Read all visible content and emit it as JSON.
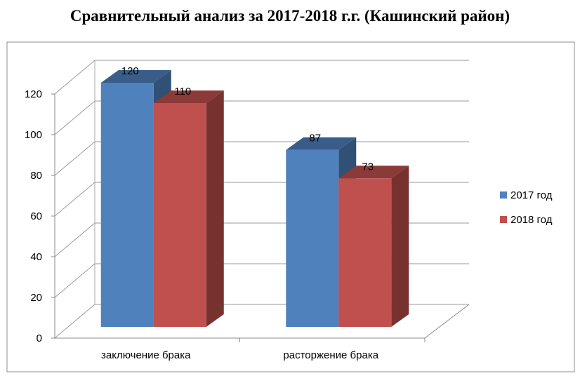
{
  "chart_data": {
    "type": "bar3d",
    "title": "Сравнительный анализ за 2017-2018 г.г. (Кашинский район)",
    "categories": [
      "заключение брака",
      "расторжение брака"
    ],
    "series": [
      {
        "name": "2017 год",
        "color": "#4f81bd",
        "values": [
          120,
          87
        ]
      },
      {
        "name": "2018 год",
        "color": "#c0504d",
        "values": [
          110,
          73
        ]
      }
    ],
    "ylim": [
      0,
      120
    ],
    "yticks": [
      0,
      20,
      40,
      60,
      80,
      100,
      120
    ],
    "grid": true,
    "legend": "right"
  }
}
